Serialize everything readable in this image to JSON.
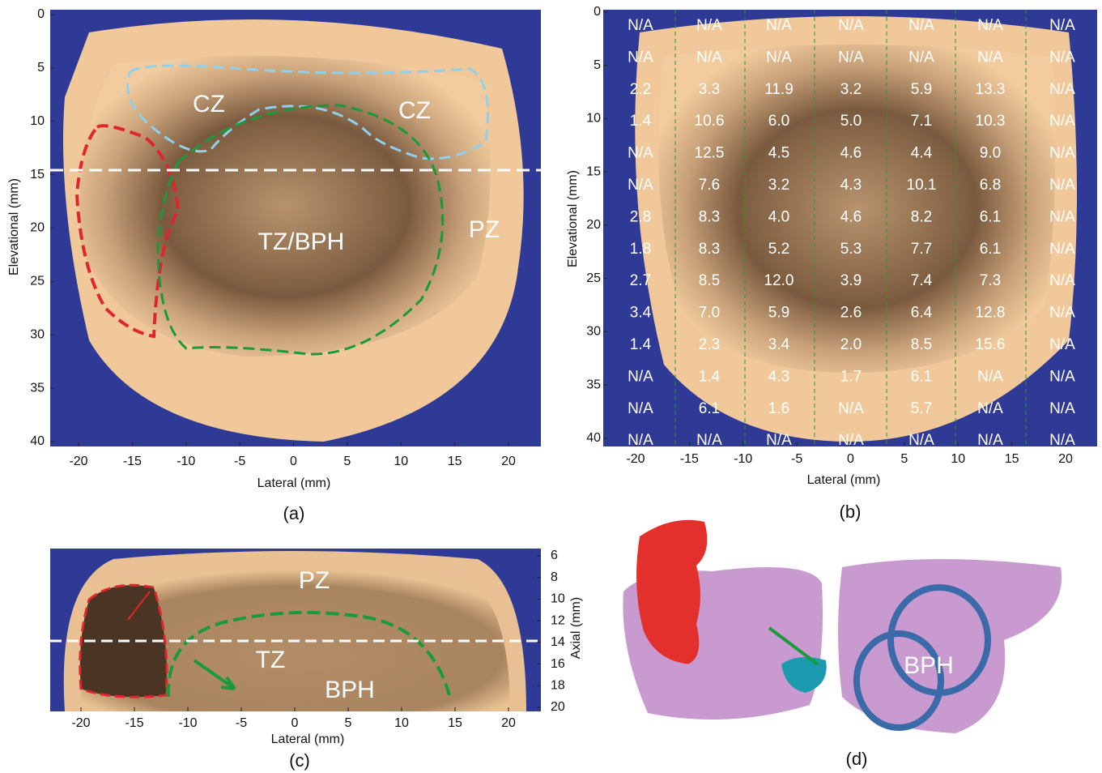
{
  "panels": {
    "a": {
      "label": "(a)",
      "xlabel": "Lateral (mm)",
      "ylabel": "Elevational (mm)",
      "xticks": [
        -20,
        -15,
        -10,
        -5,
        0,
        5,
        10,
        15,
        20
      ],
      "yticks": [
        0,
        5,
        10,
        15,
        20,
        25,
        30,
        35,
        40
      ],
      "annotations": [
        "CZ",
        "CZ",
        "TZ/BPH",
        "PZ"
      ]
    },
    "b": {
      "label": "(b)",
      "xlabel": "Lateral (mm)",
      "ylabel": "Elevational (mm)",
      "xticks": [
        -20,
        -15,
        -10,
        -5,
        0,
        5,
        10,
        15,
        20
      ],
      "yticks": [
        0,
        5,
        10,
        15,
        20,
        25,
        30,
        35,
        40
      ],
      "grid": [
        [
          "N/A",
          "N/A",
          "N/A",
          "N/A",
          "N/A",
          "N/A",
          "N/A"
        ],
        [
          "N/A",
          "N/A",
          "N/A",
          "N/A",
          "N/A",
          "N/A",
          "N/A"
        ],
        [
          "2.2",
          "3.3",
          "11.9",
          "3.2",
          "5.9",
          "13.3",
          "N/A"
        ],
        [
          "1.4",
          "10.6",
          "6.0",
          "5.0",
          "7.1",
          "10.3",
          "N/A"
        ],
        [
          "N/A",
          "12.5",
          "4.5",
          "4.6",
          "4.4",
          "9.0",
          "N/A"
        ],
        [
          "N/A",
          "7.6",
          "3.2",
          "4.3",
          "10.1",
          "6.8",
          "N/A"
        ],
        [
          "2.8",
          "8.3",
          "4.0",
          "4.6",
          "8.2",
          "6.1",
          "N/A"
        ],
        [
          "1.8",
          "8.3",
          "5.2",
          "5.3",
          "7.7",
          "6.1",
          "N/A"
        ],
        [
          "2.7",
          "8.5",
          "12.0",
          "3.9",
          "7.4",
          "7.3",
          "N/A"
        ],
        [
          "3.4",
          "7.0",
          "5.9",
          "2.6",
          "6.4",
          "12.8",
          "N/A"
        ],
        [
          "1.4",
          "2.3",
          "3.4",
          "2.0",
          "8.5",
          "15.6",
          "N/A"
        ],
        [
          "N/A",
          "1.4",
          "4.3",
          "1.7",
          "6.1",
          "N/A",
          "N/A"
        ],
        [
          "N/A",
          "6.1",
          "1.6",
          "N/A",
          "5.7",
          "N/A",
          "N/A"
        ],
        [
          "N/A",
          "N/A",
          "N/A",
          "N/A",
          "N/A",
          "N/A",
          "N/A"
        ]
      ]
    },
    "c": {
      "label": "(c)",
      "xlabel": "Lateral (mm)",
      "ylabel": "Axial (mm)",
      "xticks": [
        -20,
        -15,
        -10,
        -5,
        0,
        5,
        10,
        15,
        20
      ],
      "yticks": [
        6,
        8,
        10,
        12,
        14,
        16,
        18,
        20
      ],
      "annotations": [
        "PZ",
        "TZ",
        "BPH"
      ]
    },
    "d": {
      "label": "(d)",
      "annotations": [
        "BPH"
      ]
    }
  }
}
